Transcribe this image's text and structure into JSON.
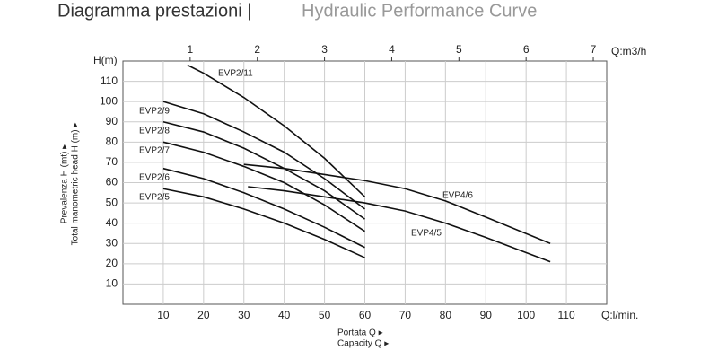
{
  "chart_data": {
    "type": "line",
    "title": "Diagramma prestazioni |",
    "subtitle": "Hydraulic Performance Curve",
    "y_unit": "H(m)",
    "y_label": [
      "Prevalenza H (mt) ▸",
      "Total manometric head H (m) ▸"
    ],
    "x_unit": "Q:l/min.",
    "x_label": [
      "Portata Q ▸",
      "Capacity Q ▸"
    ],
    "x2_unit": "Q:m3/h",
    "xlim": [
      0,
      120
    ],
    "xticks": [
      10,
      20,
      30,
      40,
      50,
      60,
      70,
      80,
      90,
      100,
      110
    ],
    "x2lim": [
      0,
      7.2
    ],
    "x2ticks": [
      1,
      2,
      3,
      4,
      5,
      6,
      7
    ],
    "ylim": [
      0,
      120
    ],
    "yticks": [
      10,
      20,
      30,
      40,
      50,
      60,
      70,
      80,
      90,
      100,
      110
    ],
    "grid": true,
    "series": [
      {
        "name": "EVP2/11",
        "color": "#111111",
        "x": [
          16,
          20,
          30,
          40,
          50,
          60
        ],
        "values": [
          118,
          114,
          102,
          88,
          72,
          53
        ]
      },
      {
        "name": "EVP2/9",
        "color": "#111111",
        "x": [
          10,
          20,
          30,
          40,
          50,
          60
        ],
        "values": [
          100,
          94,
          85,
          75,
          62,
          47
        ]
      },
      {
        "name": "EVP2/8",
        "color": "#111111",
        "x": [
          10,
          20,
          30,
          40,
          50,
          60
        ],
        "values": [
          90,
          85,
          77,
          67,
          56,
          42
        ]
      },
      {
        "name": "EVP2/7",
        "color": "#111111",
        "x": [
          10,
          20,
          30,
          40,
          50,
          60
        ],
        "values": [
          80,
          75,
          68,
          60,
          49,
          36
        ]
      },
      {
        "name": "EVP2/6",
        "color": "#111111",
        "x": [
          10,
          20,
          30,
          40,
          50,
          60
        ],
        "values": [
          67,
          62,
          55,
          47,
          38,
          28
        ]
      },
      {
        "name": "EVP2/5",
        "color": "#111111",
        "x": [
          10,
          20,
          30,
          40,
          50,
          60
        ],
        "values": [
          57,
          53,
          47,
          40,
          32,
          23
        ]
      },
      {
        "name": "EVP4/6",
        "color": "#111111",
        "x": [
          30,
          40,
          50,
          60,
          70,
          80,
          90,
          106
        ],
        "values": [
          69,
          67,
          64,
          61,
          57,
          51,
          43,
          30
        ]
      },
      {
        "name": "EVP4/5",
        "color": "#111111",
        "x": [
          31,
          40,
          50,
          60,
          70,
          80,
          90,
          106
        ],
        "values": [
          58,
          56,
          53,
          50,
          46,
          40,
          33,
          21
        ]
      }
    ]
  }
}
